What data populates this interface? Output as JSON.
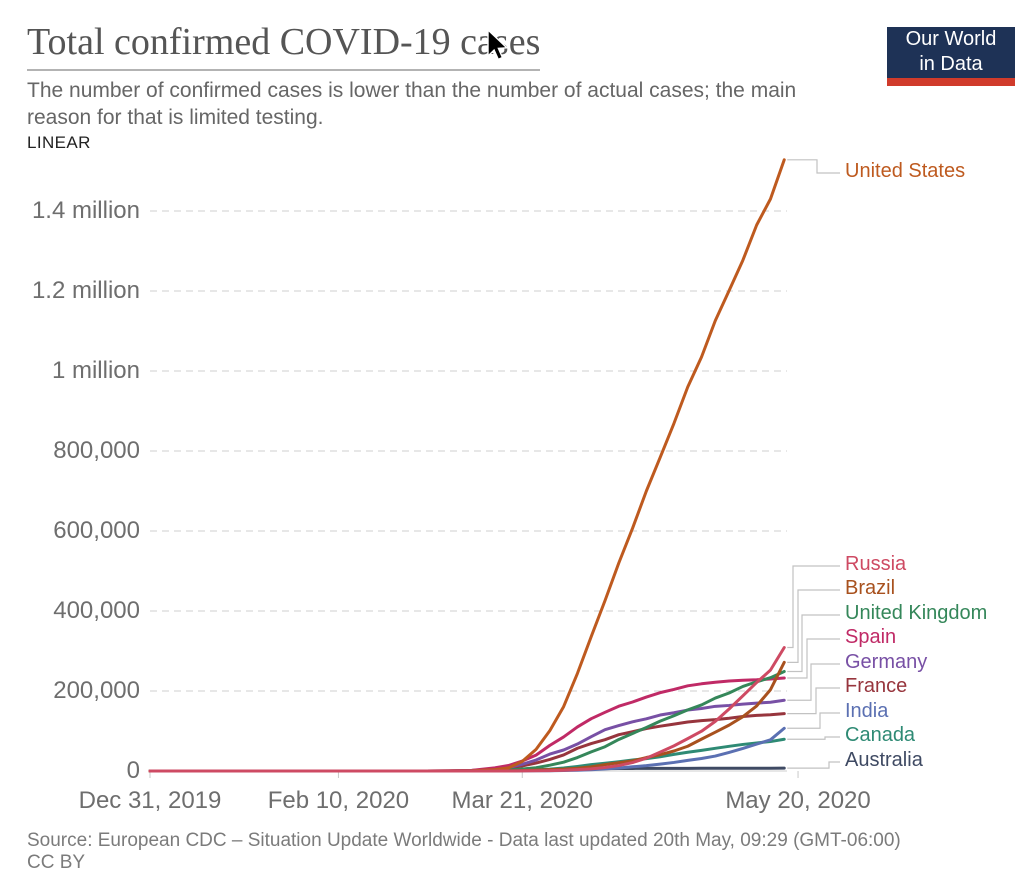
{
  "header": {
    "title": "Total confirmed COVID-19 cases",
    "subtitle": "The number of confirmed cases is lower than the number of actual cases; the main\nreason for that is limited testing.",
    "scale_toggle": "LINEAR",
    "logo": {
      "line1": "Our World",
      "line2": "in Data",
      "bg_color": "#1e3256",
      "bar_color": "#d03b2b"
    }
  },
  "footer": {
    "source": "Source: European CDC – Situation Update Worldwide - Data last updated 20th May, 09:29 (GMT-06:00)",
    "license": "CC BY"
  },
  "chart_data": {
    "type": "line",
    "title": "Total confirmed COVID-19 cases",
    "xlabel": "",
    "ylabel": "",
    "x_unit": "days since Dec 31, 2019",
    "ylim": [
      0,
      1550000
    ],
    "grid": "horizontal dashed",
    "legend_position": "right, color-matched labels with connector lines",
    "x_ticks": [
      {
        "day": 0,
        "label": "Dec 31, 2019"
      },
      {
        "day": 41,
        "label": "Feb 10, 2020"
      },
      {
        "day": 81,
        "label": "Mar 21, 2020"
      },
      {
        "day": 141,
        "label": "May 20, 2020"
      }
    ],
    "y_ticks": [
      {
        "value": 0,
        "label": "0"
      },
      {
        "value": 200000,
        "label": "200,000"
      },
      {
        "value": 400000,
        "label": "400,000"
      },
      {
        "value": 600000,
        "label": "600,000"
      },
      {
        "value": 800000,
        "label": "800,000"
      },
      {
        "value": 1000000,
        "label": "1 million"
      },
      {
        "value": 1200000,
        "label": "1.2 million"
      },
      {
        "value": 1400000,
        "label": "1.4 million"
      }
    ],
    "days": [
      0,
      60,
      65,
      70,
      75,
      78,
      81,
      84,
      87,
      90,
      93,
      96,
      99,
      102,
      105,
      108,
      111,
      114,
      117,
      120,
      123,
      126,
      129,
      132,
      135,
      138
    ],
    "series": [
      {
        "name": "United States",
        "color": "#BE5A1F",
        "z": 8,
        "values": [
          0,
          20,
          160,
          700,
          3500,
          7800,
          24000,
          54000,
          101000,
          161000,
          244000,
          336000,
          426000,
          520000,
          607000,
          700000,
          784000,
          869000,
          960000,
          1035000,
          1126000,
          1201000,
          1277000,
          1365000,
          1430000,
          1528000
        ]
      },
      {
        "name": "Russia",
        "color": "#CE4A63",
        "z": 9,
        "values": [
          0,
          0,
          0,
          0,
          60,
          150,
          300,
          660,
          1000,
          1800,
          3500,
          5400,
          8700,
          13600,
          21100,
          32000,
          47100,
          62800,
          80900,
          99400,
          124000,
          155000,
          187900,
          221300,
          252200,
          308700
        ]
      },
      {
        "name": "Brazil",
        "color": "#A8511E",
        "z": 7,
        "values": [
          0,
          0,
          0,
          0,
          100,
          300,
          1000,
          2200,
          3400,
          4600,
          6800,
          10300,
          16000,
          20700,
          25300,
          33700,
          40700,
          50000,
          61900,
          79700,
          97100,
          114700,
          135800,
          162700,
          203200,
          271600
        ]
      },
      {
        "name": "United Kingdom",
        "color": "#35875A",
        "z": 6,
        "values": [
          0,
          20,
          100,
          400,
          1400,
          2600,
          5000,
          8100,
          14500,
          22100,
          33700,
          47800,
          60700,
          78900,
          93900,
          108700,
          124700,
          138100,
          152800,
          165200,
          182300,
          195000,
          211400,
          223100,
          233200,
          248800
        ]
      },
      {
        "name": "Spain",
        "color": "#C02A66",
        "z": 5,
        "values": [
          0,
          50,
          200,
          1600,
          7800,
          13700,
          24900,
          39700,
          64100,
          85200,
          110200,
          130800,
          146700,
          161900,
          172500,
          184900,
          195900,
          204000,
          213000,
          218000,
          222000,
          225000,
          227000,
          228000,
          230000,
          232500
        ]
      },
      {
        "name": "Germany",
        "color": "#7850A5",
        "z": 4,
        "values": [
          0,
          60,
          400,
          1300,
          4600,
          8200,
          16700,
          27400,
          42300,
          52500,
          67400,
          85800,
          103200,
          113500,
          123000,
          130500,
          139900,
          145700,
          152400,
          156300,
          161700,
          163900,
          167300,
          169600,
          171900,
          176800
        ]
      },
      {
        "name": "France",
        "color": "#97353D",
        "z": 3,
        "values": [
          0,
          60,
          300,
          1400,
          4500,
          7700,
          12600,
          19900,
          28800,
          40200,
          56900,
          68600,
          78200,
          90700,
          98100,
          106200,
          112000,
          117300,
          122600,
          126000,
          128400,
          131900,
          136300,
          139000,
          140700,
          143400
        ]
      },
      {
        "name": "India",
        "color": "#5B70B2",
        "z": 2,
        "values": [
          0,
          0,
          0,
          50,
          100,
          150,
          300,
          500,
          700,
          1100,
          2000,
          3100,
          5200,
          7500,
          10500,
          13400,
          17300,
          21400,
          26500,
          31300,
          37300,
          46400,
          56300,
          67200,
          78000,
          106800
        ]
      },
      {
        "name": "Canada",
        "color": "#2E8A74",
        "z": 1,
        "values": [
          0,
          0,
          0,
          80,
          300,
          600,
          1300,
          2800,
          4700,
          7400,
          11300,
          15900,
          19300,
          23300,
          27500,
          30800,
          35600,
          41600,
          46900,
          51600,
          56700,
          61700,
          66400,
          70100,
          73600,
          79400
        ]
      },
      {
        "name": "Australia",
        "color": "#3F4A63",
        "z": 0,
        "values": [
          0,
          30,
          60,
          100,
          300,
          600,
          1100,
          2100,
          3200,
          4200,
          5100,
          5700,
          6000,
          6300,
          6400,
          6500,
          6600,
          6700,
          6700,
          6800,
          6800,
          6900,
          6900,
          7000,
          7000,
          7100
        ]
      }
    ]
  }
}
